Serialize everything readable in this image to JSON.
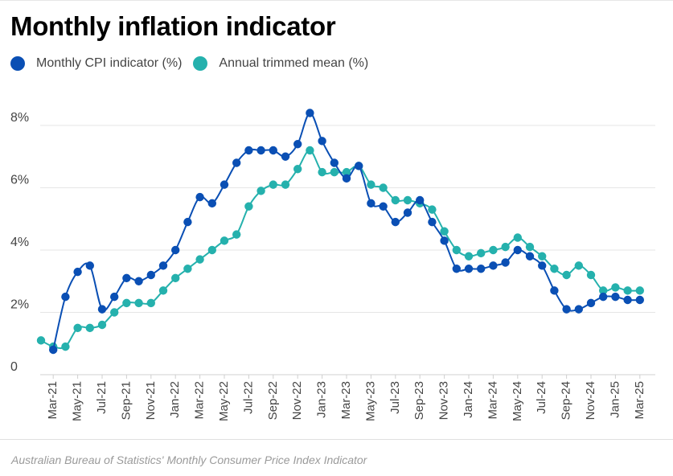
{
  "title": "Monthly inflation indicator",
  "source": "Australian Bureau of Statistics' Monthly Consumer Price Index Indicator",
  "colors": {
    "cpi": "#0a4fb4",
    "trimmed": "#25b1ad",
    "grid": "#e6e6e6",
    "axis_text": "#444444"
  },
  "chart_data": {
    "type": "line",
    "title": "Monthly inflation indicator",
    "xlabel": "",
    "ylabel": "",
    "ylim": [
      0,
      8.8
    ],
    "yticks": [
      0,
      2,
      4,
      6,
      8
    ],
    "ytick_labels": [
      "0",
      "2%",
      "4%",
      "6%",
      "8%"
    ],
    "x": [
      "Feb-21",
      "Mar-21",
      "Apr-21",
      "May-21",
      "Jun-21",
      "Jul-21",
      "Aug-21",
      "Sep-21",
      "Oct-21",
      "Nov-21",
      "Dec-21",
      "Jan-22",
      "Feb-22",
      "Mar-22",
      "Apr-22",
      "May-22",
      "Jun-22",
      "Jul-22",
      "Aug-22",
      "Sep-22",
      "Oct-22",
      "Nov-22",
      "Dec-22",
      "Jan-23",
      "Feb-23",
      "Mar-23",
      "Apr-23",
      "May-23",
      "Jun-23",
      "Jul-23",
      "Aug-23",
      "Sep-23",
      "Oct-23",
      "Nov-23",
      "Dec-23",
      "Jan-24",
      "Feb-24",
      "Mar-24",
      "Apr-24",
      "May-24",
      "Jun-24",
      "Jul-24",
      "Aug-24",
      "Sep-24",
      "Oct-24",
      "Nov-24",
      "Dec-24",
      "Jan-25",
      "Feb-25",
      "Mar-25"
    ],
    "xtick_labels": [
      "Mar-21",
      "May-21",
      "Jul-21",
      "Sep-21",
      "Nov-21",
      "Jan-22",
      "Mar-22",
      "May-22",
      "Jul-22",
      "Sep-22",
      "Nov-22",
      "Jan-23",
      "Mar-23",
      "May-23",
      "Jul-23",
      "Sep-23",
      "Nov-23",
      "Jan-24",
      "Mar-24",
      "May-24",
      "Jul-24",
      "Sep-24",
      "Nov-24",
      "Jan-25",
      "Mar-25"
    ],
    "legend": "top-left",
    "grid": true,
    "series": [
      {
        "name": "Monthly CPI indicator (%)",
        "key": "cpi",
        "values": [
          null,
          0.8,
          2.5,
          3.3,
          3.5,
          2.1,
          2.5,
          3.1,
          3.0,
          3.2,
          3.5,
          4.0,
          4.9,
          5.7,
          5.5,
          6.1,
          6.8,
          7.2,
          7.2,
          7.2,
          7.0,
          7.4,
          8.4,
          7.5,
          6.8,
          6.3,
          6.7,
          5.5,
          5.4,
          4.9,
          5.2,
          5.6,
          4.9,
          4.3,
          3.4,
          3.4,
          3.4,
          3.5,
          3.6,
          4.0,
          3.8,
          3.5,
          2.7,
          2.1,
          2.1,
          2.3,
          2.5,
          2.5,
          2.4,
          2.4
        ]
      },
      {
        "name": "Annual trimmed mean (%)",
        "key": "trimmed",
        "values": [
          1.1,
          0.9,
          0.9,
          1.5,
          1.5,
          1.6,
          2.0,
          2.3,
          2.3,
          2.3,
          2.7,
          3.1,
          3.4,
          3.7,
          4.0,
          4.3,
          4.5,
          5.4,
          5.9,
          6.1,
          6.1,
          6.6,
          7.2,
          6.5,
          6.5,
          6.5,
          6.7,
          6.1,
          6.0,
          5.6,
          5.6,
          5.5,
          5.3,
          4.6,
          4.0,
          3.8,
          3.9,
          4.0,
          4.1,
          4.4,
          4.1,
          3.8,
          3.4,
          3.2,
          3.5,
          3.2,
          2.7,
          2.8,
          2.7,
          2.7
        ]
      }
    ]
  }
}
